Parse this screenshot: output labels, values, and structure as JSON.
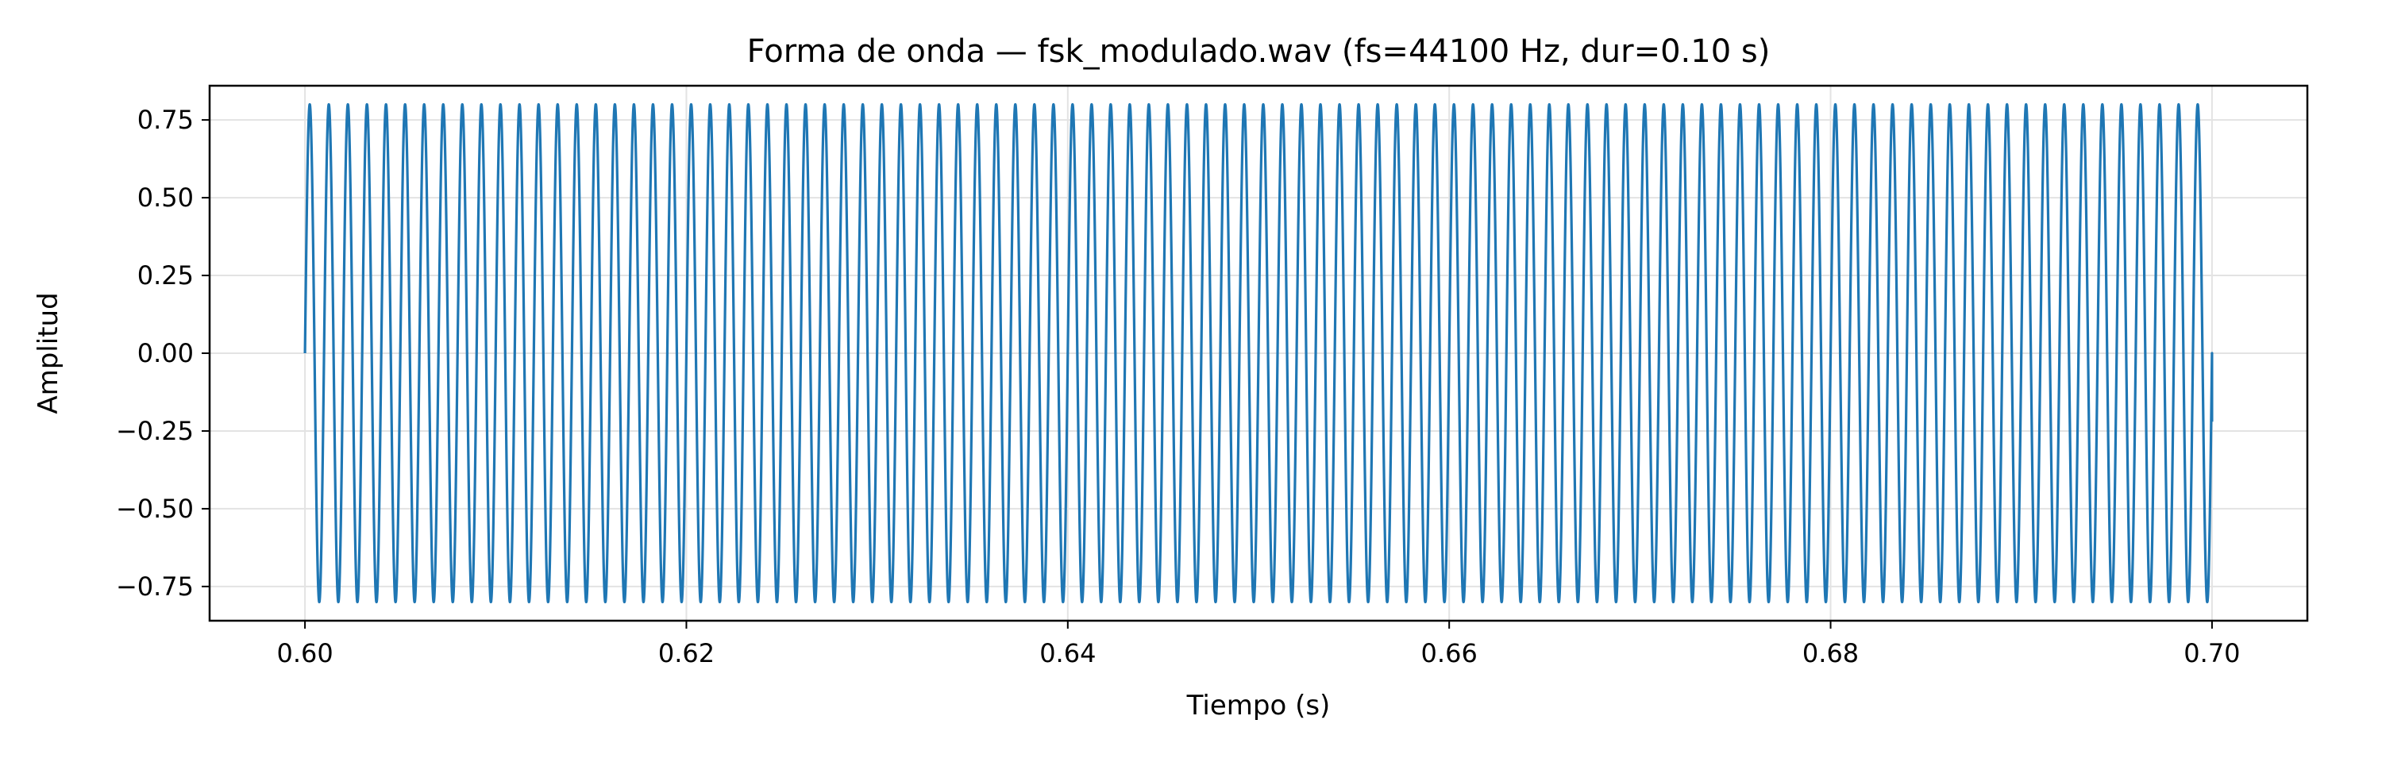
{
  "chart_data": {
    "type": "line",
    "title": "Forma de onda — fsk_modulado.wav (fs=44100 Hz, dur=0.10 s)",
    "xlabel": "Tiempo (s)",
    "ylabel": "Amplitud",
    "xlim": [
      0.595,
      0.705
    ],
    "ylim": [
      -0.86,
      0.86
    ],
    "xticks": [
      0.6,
      0.62,
      0.64,
      0.66,
      0.68,
      0.7
    ],
    "xtick_labels": [
      "0.60",
      "0.62",
      "0.64",
      "0.66",
      "0.68",
      "0.70"
    ],
    "yticks": [
      -0.75,
      -0.5,
      -0.25,
      0.0,
      0.25,
      0.5,
      0.75
    ],
    "ytick_labels": [
      "−0.75",
      "−0.50",
      "−0.25",
      "0.00",
      "0.25",
      "0.50",
      "0.75"
    ],
    "grid": true,
    "series": [
      {
        "color": "#1f77b4",
        "signal": {
          "waveform": "sine",
          "amplitude": 0.8,
          "frequency_hz": 1000,
          "t_start": 0.6,
          "t_end": 0.7,
          "sample_rate_hz": 44100,
          "end_value": -0.22
        }
      }
    ]
  }
}
